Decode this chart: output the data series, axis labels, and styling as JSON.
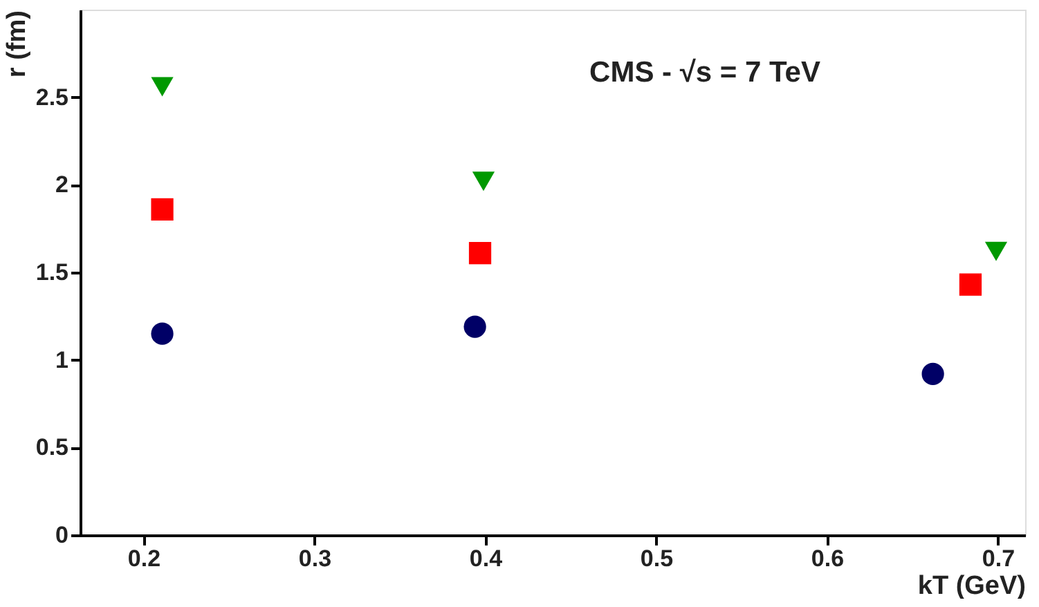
{
  "chart_data": {
    "type": "scatter",
    "xlabel": "kT (GeV)",
    "ylabel": "r (fm)",
    "annotations": [
      "CMS - √s = 7 TeV"
    ],
    "xlim": [
      0.163,
      0.716
    ],
    "xticks": [
      0.2,
      0.3,
      0.4,
      0.5,
      0.6,
      0.7
    ],
    "ylim": [
      0,
      3
    ],
    "yticks": [
      0,
      0.5,
      1,
      1.5,
      2,
      2.5
    ],
    "series": [
      {
        "color": "#000066",
        "marker": "circle",
        "x": [
          0.211,
          0.394,
          0.662
        ],
        "values": [
          1.15,
          1.19,
          0.92
        ]
      },
      {
        "color": "#ff0000",
        "marker": "square",
        "x": [
          0.211,
          0.397,
          0.684
        ],
        "values": [
          1.86,
          1.61,
          1.43
        ]
      },
      {
        "color": "#009900",
        "marker": "triangle",
        "x": [
          0.211,
          0.399,
          0.699
        ],
        "values": [
          2.56,
          2.02,
          1.62
        ]
      }
    ]
  }
}
